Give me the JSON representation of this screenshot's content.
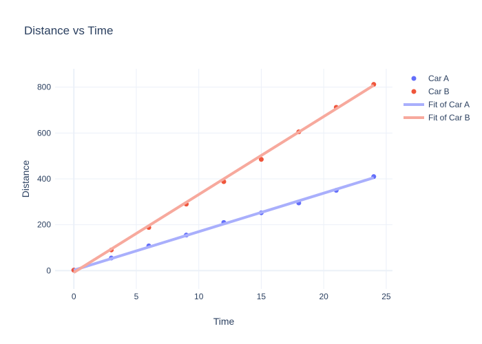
{
  "chart_data": {
    "type": "scatter",
    "title": "Distance vs Time",
    "xlabel": "Time",
    "ylabel": "Distance",
    "xlim": [
      -1.5,
      25.5
    ],
    "ylim": [
      -80,
      880
    ],
    "x_ticks": [
      0,
      5,
      10,
      15,
      20,
      25
    ],
    "y_ticks": [
      0,
      200,
      400,
      600,
      800
    ],
    "grid": true,
    "legend_position": "top-right",
    "series": [
      {
        "name": "Car A",
        "mode": "markers",
        "color": "#636efa",
        "x": [
          0,
          3,
          6,
          9,
          12,
          15,
          18,
          21,
          24
        ],
        "y": [
          2,
          55,
          108,
          155,
          210,
          252,
          295,
          350,
          410
        ]
      },
      {
        "name": "Car B",
        "mode": "markers",
        "color": "#ef553b",
        "x": [
          0,
          3,
          6,
          9,
          12,
          15,
          18,
          21,
          24
        ],
        "y": [
          2,
          90,
          188,
          290,
          388,
          485,
          605,
          712,
          812
        ]
      },
      {
        "name": "Fit of Car A",
        "mode": "line",
        "color": "#a9affc",
        "x": [
          0,
          24
        ],
        "y": [
          2,
          405
        ]
      },
      {
        "name": "Fit of Car B",
        "mode": "line",
        "color": "#f7a99d",
        "x": [
          0,
          24
        ],
        "y": [
          -8,
          808
        ]
      }
    ]
  }
}
